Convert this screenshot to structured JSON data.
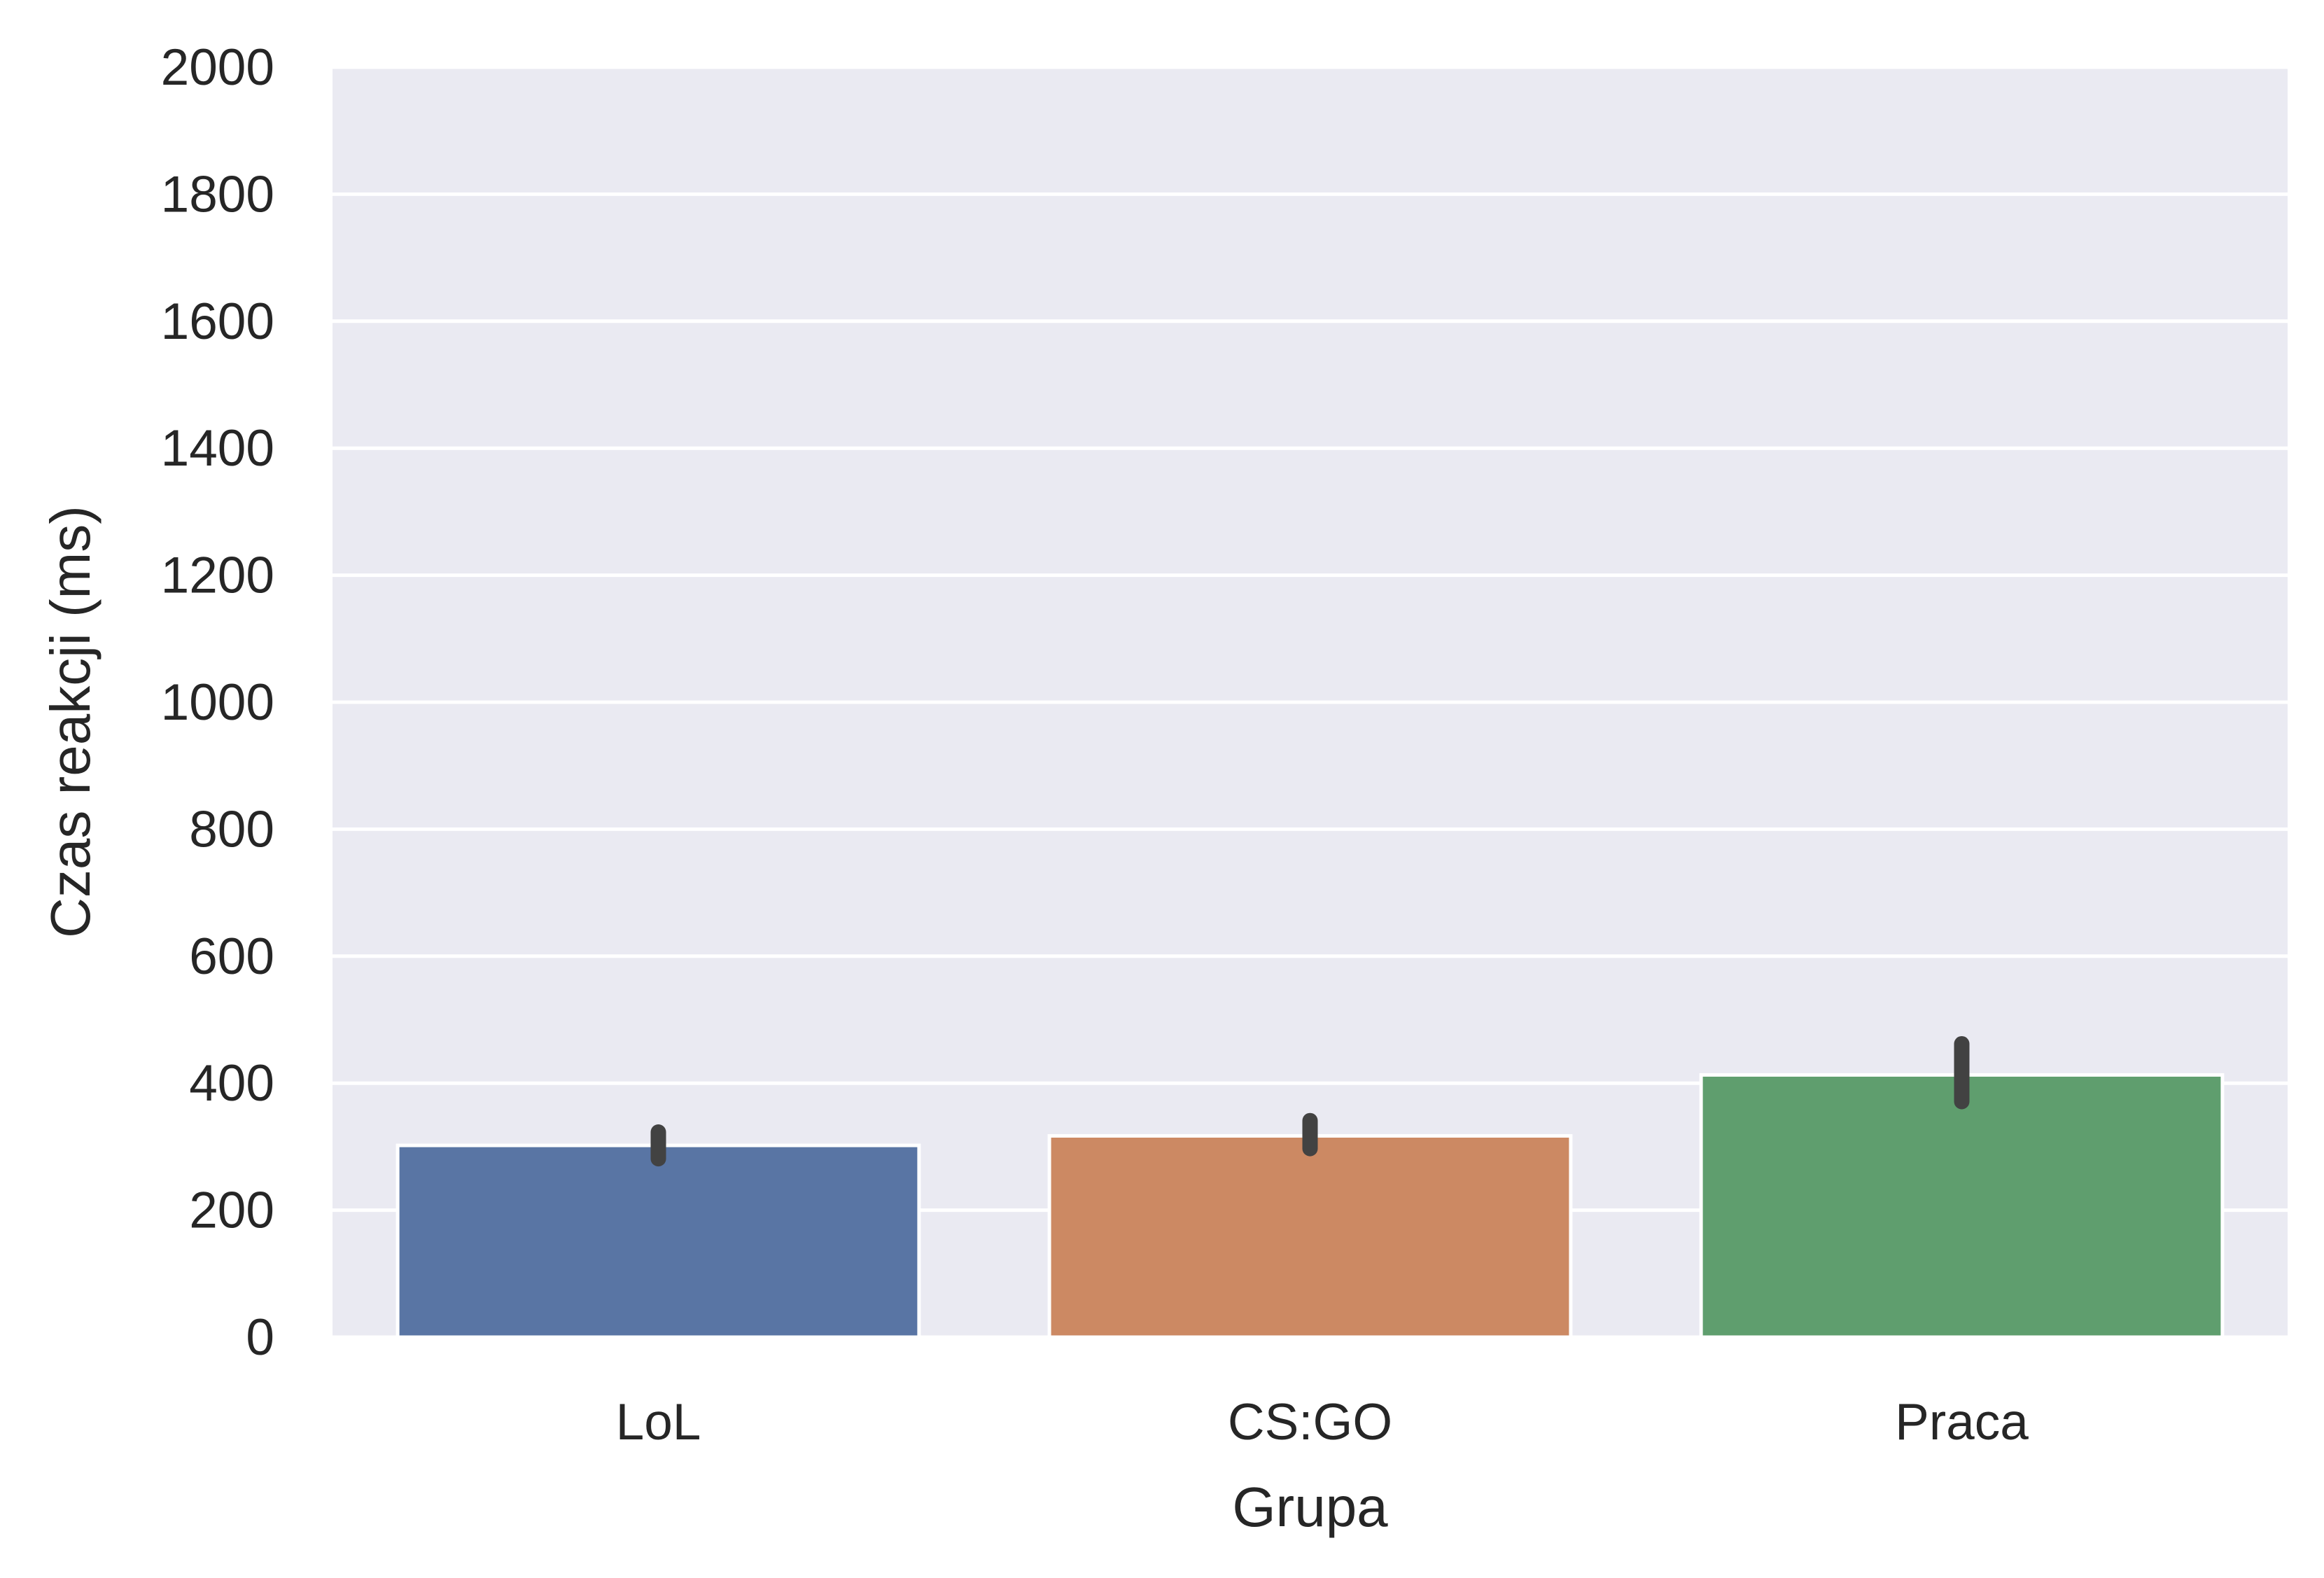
{
  "chart_data": {
    "type": "bar",
    "title": "",
    "xlabel": "Grupa",
    "ylabel": "Czas reakcji (ms)",
    "categories": [
      "LoL",
      "CS:GO",
      "Praca"
    ],
    "values": [
      302,
      317,
      413
    ],
    "error_low": [
      281,
      297,
      371
    ],
    "error_high": [
      323,
      341,
      462
    ],
    "colors": [
      "#5975a4",
      "#cc8963",
      "#5f9e6e"
    ],
    "ylim": [
      0,
      2000
    ],
    "yticks": [
      0,
      200,
      400,
      600,
      800,
      1000,
      1200,
      1400,
      1600,
      1800,
      2000
    ],
    "grid": true,
    "plot_background": "#eaeaf2",
    "error_color": "#424242"
  }
}
